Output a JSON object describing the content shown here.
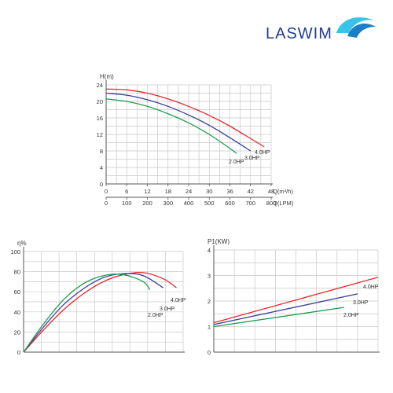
{
  "brand": {
    "name": "LASWIM",
    "colors": {
      "text": "#1f3f8f",
      "wave_light": "#39c3e6",
      "wave_dark": "#1a7fc6"
    }
  },
  "colors": {
    "4.0HP": "#e8262b",
    "3.0HP": "#3b3c9a",
    "2.0HP": "#1f9b4f",
    "grid": "#c8c8c8",
    "axis": "#555555"
  },
  "chart_data": [
    {
      "type": "line",
      "title": "",
      "ylabel": "H(m)",
      "xlabel": "Q(m³/h)",
      "xlabel2": "Q(LPM)",
      "xlim": [
        0,
        48
      ],
      "ylim": [
        0,
        24
      ],
      "x_ticks": [
        "0",
        "6",
        "12",
        "18",
        "24",
        "30",
        "36",
        "42",
        "48"
      ],
      "x2_ticks": [
        "0",
        "100",
        "200",
        "300",
        "400",
        "500",
        "600",
        "700",
        "800"
      ],
      "y_ticks": [
        "0",
        "4",
        "8",
        "12",
        "16",
        "20",
        "24"
      ],
      "grid": true,
      "series": [
        {
          "name": "4.0HP",
          "x": [
            0,
            6,
            12,
            18,
            24,
            30,
            36,
            42,
            46
          ],
          "y": [
            23.0,
            22.8,
            22.0,
            20.6,
            18.8,
            16.6,
            14.0,
            11.0,
            9.0
          ]
        },
        {
          "name": "3.0HP",
          "x": [
            0,
            6,
            12,
            18,
            24,
            30,
            36,
            42
          ],
          "y": [
            22.0,
            21.5,
            20.4,
            18.8,
            16.7,
            14.2,
            11.2,
            8.0
          ]
        },
        {
          "name": "2.0HP",
          "x": [
            0,
            6,
            12,
            18,
            24,
            30,
            36,
            38
          ],
          "y": [
            20.6,
            20.0,
            18.8,
            17.0,
            14.8,
            12.0,
            8.6,
            7.4
          ]
        }
      ]
    },
    {
      "type": "line",
      "title": "",
      "ylabel": "η%",
      "xlabel": "",
      "xlim": [
        0,
        48
      ],
      "ylim": [
        0,
        100
      ],
      "y_ticks": [
        "0",
        "20",
        "40",
        "60",
        "80",
        "100"
      ],
      "grid": true,
      "series": [
        {
          "name": "4.0HP",
          "x": [
            0,
            6,
            12,
            18,
            24,
            30,
            36,
            42,
            46
          ],
          "y": [
            0,
            22,
            42,
            58,
            70,
            77,
            79,
            73,
            64
          ]
        },
        {
          "name": "3.0HP",
          "x": [
            0,
            6,
            12,
            18,
            24,
            30,
            36,
            42
          ],
          "y": [
            0,
            25,
            47,
            63,
            74,
            78,
            76,
            64
          ]
        },
        {
          "name": "2.0HP",
          "x": [
            0,
            6,
            12,
            18,
            24,
            30,
            36,
            38
          ],
          "y": [
            0,
            28,
            52,
            68,
            76,
            77,
            70,
            62
          ]
        }
      ]
    },
    {
      "type": "line",
      "title": "",
      "ylabel": "P1(KW)",
      "xlabel": "",
      "xlim": [
        0,
        48
      ],
      "ylim": [
        0,
        4
      ],
      "y_ticks": [
        "0",
        "1",
        "2",
        "3",
        "4"
      ],
      "grid": true,
      "series": [
        {
          "name": "4.0HP",
          "x": [
            0,
            48
          ],
          "y": [
            1.15,
            2.93
          ]
        },
        {
          "name": "3.0HP",
          "x": [
            0,
            42
          ],
          "y": [
            1.08,
            2.28
          ]
        },
        {
          "name": "2.0HP",
          "x": [
            0,
            38
          ],
          "y": [
            1.0,
            1.75
          ]
        }
      ]
    }
  ]
}
